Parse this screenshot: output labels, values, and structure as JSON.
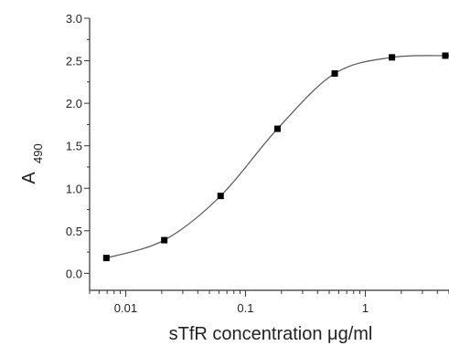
{
  "chart_data": {
    "type": "scatter",
    "xscale": "log",
    "xlabel": "sTfR concentration μg/ml",
    "ylabel_main": "A",
    "ylabel_sub": "490",
    "xlim": [
      0.005,
      5
    ],
    "ylim": [
      -0.2,
      3.0
    ],
    "x_ticks": [
      0.01,
      0.1,
      1
    ],
    "x_tick_labels": [
      "0.01",
      "0.1",
      "1"
    ],
    "y_ticks": [
      0.0,
      0.5,
      1.0,
      1.5,
      2.0,
      2.5,
      3.0
    ],
    "y_tick_labels": [
      "0.0",
      "0.5",
      "1.0",
      "1.5",
      "2.0",
      "2.5",
      "3.0"
    ],
    "grid": false,
    "series": [
      {
        "x": [
          0.0069,
          0.021,
          0.062,
          0.185,
          0.556,
          1.67,
          5.0
        ],
        "y": [
          0.18,
          0.39,
          0.91,
          1.7,
          2.35,
          2.54,
          2.56
        ],
        "marker": "square",
        "line": "smooth",
        "color": "#000000",
        "line_color": "#555555"
      }
    ]
  }
}
